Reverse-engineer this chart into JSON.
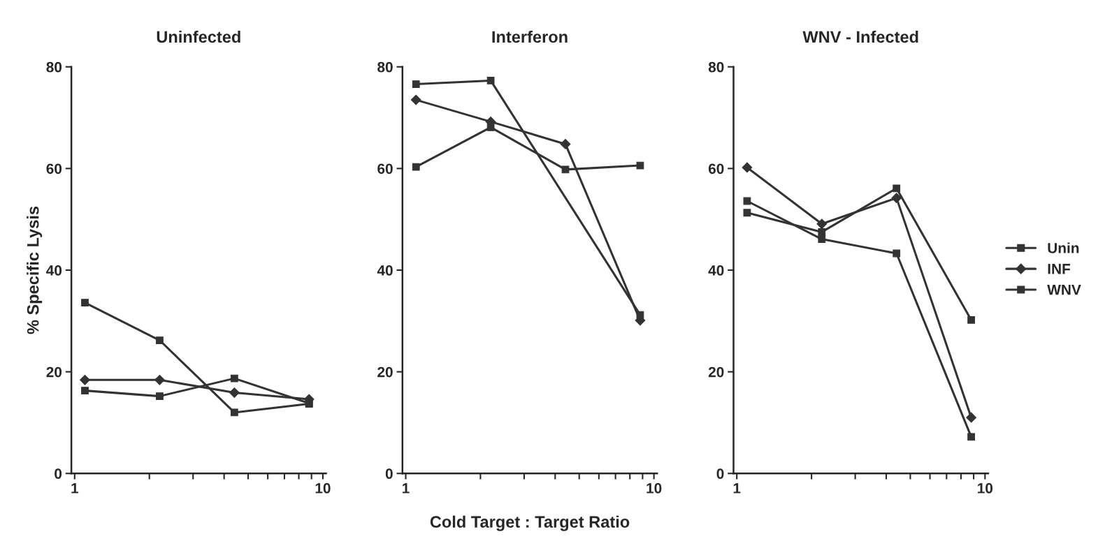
{
  "chart_data": [
    {
      "type": "line",
      "title": "Uninfected",
      "ylabel": "% Specific Lysis",
      "x": [
        1.1,
        2.2,
        4.4,
        8.8
      ],
      "xlim": [
        0.97,
        10.3
      ],
      "ylim": [
        0,
        80
      ],
      "log": "x",
      "xticks": [
        1,
        {
          "value": 2,
          "label": null
        },
        {
          "value": 3,
          "label": null
        },
        {
          "value": 4,
          "label": null
        },
        {
          "value": 5,
          "label": null
        },
        {
          "value": 6,
          "label": null
        },
        {
          "value": 7,
          "label": null
        },
        {
          "value": 8,
          "label": null
        },
        {
          "value": 9,
          "label": null
        },
        10
      ],
      "yticks": [
        0,
        20,
        40,
        60,
        80
      ],
      "grid": false,
      "legend": false,
      "line_style": "solid",
      "series": [
        {
          "color": "#333333",
          "marker": "square",
          "values": [
            33.6,
            26.2,
            12.0,
            13.7
          ]
        },
        {
          "color": "#333333",
          "marker": "diamond",
          "values": [
            18.4,
            18.4,
            15.9,
            14.6
          ]
        },
        {
          "color": "#333333",
          "marker": "square",
          "values": [
            16.3,
            15.2,
            18.7,
            13.8
          ]
        }
      ]
    },
    {
      "type": "line",
      "title": "Interferon",
      "xlabel": "Cold Target : Target Ratio",
      "x": [
        1.1,
        2.2,
        4.4,
        8.8
      ],
      "xlim": [
        0.97,
        10.3
      ],
      "ylim": [
        0,
        80
      ],
      "log": "x",
      "xticks": [
        1,
        {
          "value": 2,
          "label": null
        },
        {
          "value": 3,
          "label": null
        },
        {
          "value": 4,
          "label": null
        },
        {
          "value": 5,
          "label": null
        },
        {
          "value": 6,
          "label": null
        },
        {
          "value": 7,
          "label": null
        },
        {
          "value": 8,
          "label": null
        },
        {
          "value": 9,
          "label": null
        },
        10
      ],
      "yticks": [
        0,
        20,
        40,
        60,
        80
      ],
      "grid": false,
      "legend": false,
      "line_style": "solid",
      "series": [
        {
          "color": "#333333",
          "marker": "square",
          "values": [
            60.3,
            68.1,
            59.8,
            60.6
          ]
        },
        {
          "color": "#333333",
          "marker": "diamond",
          "values": [
            73.5,
            69.2,
            64.8,
            30.1
          ]
        },
        {
          "color": "#333333",
          "marker": "square",
          "x": [
            1.1,
            2.2,
            8.8
          ],
          "values": [
            76.6,
            77.3,
            31.2
          ]
        }
      ]
    },
    {
      "type": "line",
      "title": "WNV - Infected",
      "x": [
        1.1,
        2.2,
        4.4,
        8.8
      ],
      "xlim": [
        0.97,
        10.3
      ],
      "ylim": [
        0,
        80
      ],
      "log": "x",
      "xticks": [
        1,
        {
          "value": 2,
          "label": null
        },
        {
          "value": 3,
          "label": null
        },
        {
          "value": 4,
          "label": null
        },
        {
          "value": 5,
          "label": null
        },
        {
          "value": 6,
          "label": null
        },
        {
          "value": 7,
          "label": null
        },
        {
          "value": 8,
          "label": null
        },
        {
          "value": 9,
          "label": null
        },
        10
      ],
      "yticks": [
        0,
        20,
        40,
        60,
        80
      ],
      "grid": false,
      "legend": "right",
      "line_style": "solid",
      "series": [
        {
          "name": "Unin",
          "color": "#333333",
          "marker": "square",
          "values": [
            51.3,
            47.5,
            56.1,
            30.2
          ]
        },
        {
          "name": "INF",
          "color": "#333333",
          "marker": "diamond",
          "values": [
            60.2,
            49.1,
            54.2,
            11.0
          ]
        },
        {
          "name": "WNV",
          "color": "#333333",
          "marker": "square",
          "values": [
            53.6,
            46.1,
            43.3,
            7.2
          ]
        }
      ]
    }
  ]
}
